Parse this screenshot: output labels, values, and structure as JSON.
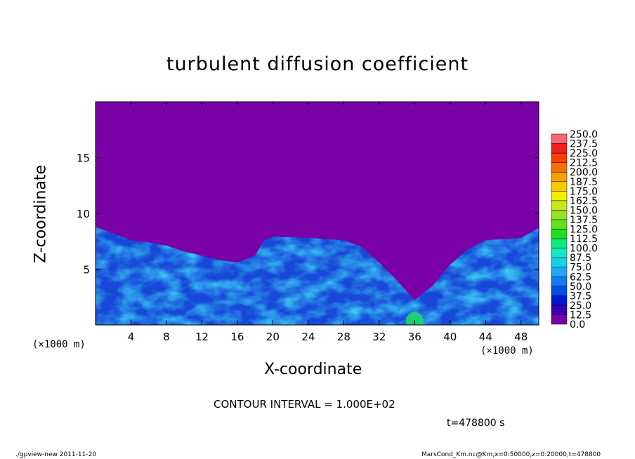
{
  "chart_data": {
    "type": "heatmap",
    "title": "turbulent diffusion coefficient",
    "xlabel": "X-coordinate",
    "ylabel": "Z-coordinate",
    "x_unit_label": "(×1000 m)",
    "xlim": [
      0,
      50
    ],
    "ylim": [
      0,
      20
    ],
    "x_ticks": [
      4,
      8,
      12,
      16,
      20,
      24,
      28,
      32,
      36,
      40,
      44,
      48
    ],
    "y_ticks": [
      5,
      10,
      15
    ],
    "colorbar": {
      "levels": [
        "0.0",
        "12.5",
        "25.0",
        "37.5",
        "50.0",
        "62.5",
        "75.0",
        "87.5",
        "100.0",
        "112.5",
        "125.0",
        "137.5",
        "150.0",
        "162.5",
        "175.0",
        "187.5",
        "200.0",
        "212.5",
        "225.0",
        "237.5",
        "250.0"
      ],
      "colors": [
        "#7a00a8",
        "#3a00b4",
        "#0018d0",
        "#0050e8",
        "#1478f0",
        "#20a8f0",
        "#18d0e8",
        "#10e8c8",
        "#10e880",
        "#20e020",
        "#60e020",
        "#98e020",
        "#c8e818",
        "#f0f000",
        "#f8c800",
        "#f8a000",
        "#f87000",
        "#f84000",
        "#f02020",
        "#f86870"
      ],
      "background_value_color": "#7a00a8"
    },
    "boundary_layer_top_km": [
      [
        0,
        8.8
      ],
      [
        2,
        8.2
      ],
      [
        4,
        7.6
      ],
      [
        6,
        7.4
      ],
      [
        8,
        7.1
      ],
      [
        10,
        6.6
      ],
      [
        12,
        6.2
      ],
      [
        14,
        5.8
      ],
      [
        16,
        5.6
      ],
      [
        18,
        6.2
      ],
      [
        19,
        7.6
      ],
      [
        20,
        7.9
      ],
      [
        24,
        7.8
      ],
      [
        28,
        7.6
      ],
      [
        30,
        7.0
      ],
      [
        32,
        5.6
      ],
      [
        34,
        4.0
      ],
      [
        36,
        2.2
      ],
      [
        38,
        3.5
      ],
      [
        40,
        5.4
      ],
      [
        42,
        6.8
      ],
      [
        44,
        7.6
      ],
      [
        46,
        7.7
      ],
      [
        48,
        7.8
      ],
      [
        50,
        8.7
      ]
    ],
    "max_region_x_km": [
      35,
      37
    ]
  },
  "contour_interval": "CONTOUR INTERVAL = 1.000E+02",
  "time_label": "t=478800 s",
  "footer_left": "./gpview-new  2011-11-20",
  "footer_right": "MarsCond_Km.nc@Km,x=0:50000,z=0:20000,t=478800"
}
